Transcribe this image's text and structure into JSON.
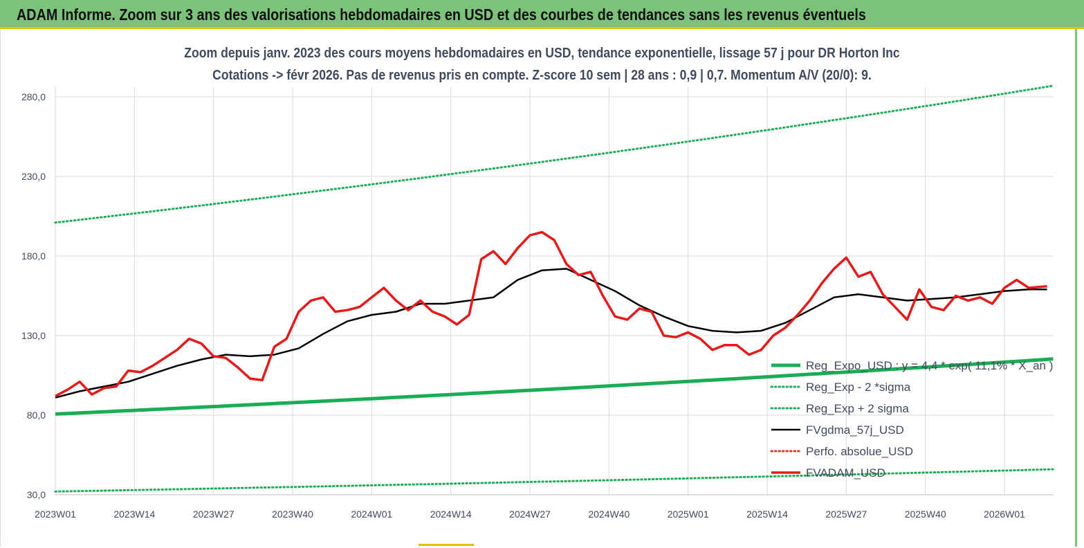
{
  "banner": {
    "title": "ADAM Informe. Zoom sur 3 ans des valorisations hebdomadaires en USD et des courbes de tendances sans les revenus éventuels"
  },
  "colors": {
    "banner_bg": "#7dc27a",
    "trend": "#1aad55",
    "band": "#1aad55",
    "smooth": "#000000",
    "perf": "#e03030",
    "price": "#e51a1a",
    "subtitle": "#404a5c"
  },
  "chart_data": {
    "type": "line",
    "title": "Zoom depuis janv. 2023 des cours moyens hebdomadaires en USD, tendance exponentielle, lissage 57 j pour DR Horton Inc",
    "subtitle": "Cotations -> févr 2026. Pas de revenus pris en compte. Z-score 10 sem | 28 ans : 0,9 | 0,7. Momentum A/V (20/0): 9.",
    "ylim": [
      30,
      280
    ],
    "yticks": [
      "30,0",
      "80,0",
      "130,0",
      "180,0",
      "230,0",
      "280,0"
    ],
    "xticks": [
      "2023W01",
      "2023W14",
      "2023W27",
      "2023W40",
      "2024W01",
      "2024W14",
      "2024W27",
      "2024W40",
      "2025W01",
      "2025W14",
      "2025W27",
      "2025W40",
      "2026W01"
    ],
    "x_range_weeks": [
      0,
      164
    ],
    "grid": true,
    "legend_position": "bottom-right",
    "series": [
      {
        "name": "Reg_Expo_USD : y = 4,4 * exp( 11,1% * X_an )",
        "style": "solid-thick",
        "color": "#1aad55",
        "x": [
          0,
          164
        ],
        "y": [
          80.7,
          115.3
        ]
      },
      {
        "name": "Reg_Exp - 2 *sigma",
        "style": "dotted",
        "color": "#1aad55",
        "x": [
          0,
          164
        ],
        "y": [
          32.0,
          46.0
        ]
      },
      {
        "name": "Reg_Exp + 2 sigma",
        "style": "dotted",
        "color": "#1aad55",
        "x": [
          0,
          164
        ],
        "y": [
          201.0,
          287.0
        ]
      },
      {
        "name": "FVgdma_57j_USD",
        "style": "solid",
        "color": "#000000",
        "x": [
          0,
          4,
          8,
          12,
          16,
          20,
          24,
          28,
          32,
          36,
          40,
          44,
          48,
          52,
          56,
          60,
          64,
          68,
          72,
          76,
          80,
          84,
          88,
          92,
          96,
          100,
          104,
          108,
          112,
          116,
          120,
          124,
          128,
          132,
          136,
          140,
          144,
          148,
          152,
          156,
          160,
          163
        ],
        "y": [
          91,
          95,
          98,
          101,
          106,
          111,
          115,
          118,
          117,
          118,
          122,
          131,
          139,
          143,
          145,
          150,
          150,
          152,
          154,
          165,
          171,
          172,
          165,
          158,
          149,
          142,
          136,
          133,
          132,
          133,
          138,
          146,
          154,
          156,
          154,
          152,
          153,
          154,
          156,
          158,
          159,
          159
        ]
      },
      {
        "name": "Perfo. absolue_USD",
        "style": "dotted",
        "color": "#e03030",
        "x": [],
        "y": []
      },
      {
        "name": "FVADAM_USD",
        "style": "solid-thick",
        "color": "#e51a1a",
        "x": [
          0,
          2,
          4,
          6,
          8,
          10,
          12,
          14,
          16,
          18,
          20,
          22,
          24,
          26,
          28,
          30,
          32,
          34,
          36,
          38,
          40,
          42,
          44,
          46,
          48,
          50,
          52,
          54,
          56,
          58,
          60,
          62,
          64,
          66,
          68,
          70,
          72,
          74,
          76,
          78,
          80,
          82,
          84,
          86,
          88,
          90,
          92,
          94,
          96,
          98,
          100,
          102,
          104,
          106,
          108,
          110,
          112,
          114,
          116,
          118,
          120,
          122,
          124,
          126,
          128,
          130,
          132,
          134,
          136,
          138,
          140,
          142,
          144,
          146,
          148,
          150,
          152,
          154,
          156,
          158,
          160,
          163
        ],
        "y": [
          92,
          96,
          101,
          93,
          97,
          98,
          108,
          107,
          111,
          116,
          121,
          128,
          125,
          117,
          116,
          110,
          103,
          102,
          123,
          128,
          145,
          152,
          154,
          145,
          146,
          148,
          154,
          160,
          152,
          146,
          152,
          145,
          142,
          137,
          143,
          178,
          183,
          175,
          185,
          193,
          195,
          190,
          175,
          168,
          170,
          155,
          142,
          140,
          147,
          145,
          130,
          129,
          132,
          128,
          121,
          124,
          124,
          118,
          121,
          130,
          135,
          143,
          152,
          163,
          172,
          179,
          167,
          170,
          156,
          148,
          140,
          159,
          148,
          146,
          155,
          152,
          154,
          150,
          160,
          165,
          160,
          161
        ]
      }
    ]
  }
}
